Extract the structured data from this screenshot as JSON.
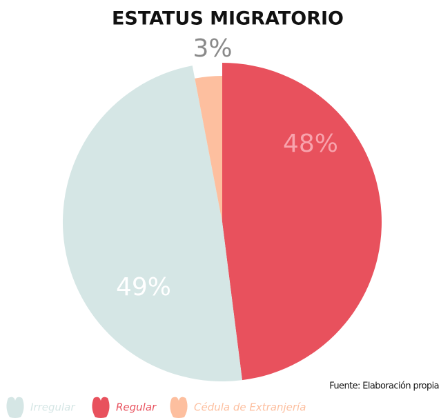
{
  "chart_data": {
    "type": "pie",
    "title": "ESTATUS MIGRATORIO",
    "categories": [
      "Irregular",
      "Regular",
      "Cédula de Extranjería"
    ],
    "values": [
      49,
      48,
      3
    ],
    "value_labels": [
      "49%",
      "48%",
      "3%"
    ],
    "colors": [
      "#d5e6e5",
      "#e8515d",
      "#fdbf9f"
    ],
    "note": "Fuente: Elaboración propia",
    "legend": "bottom"
  }
}
